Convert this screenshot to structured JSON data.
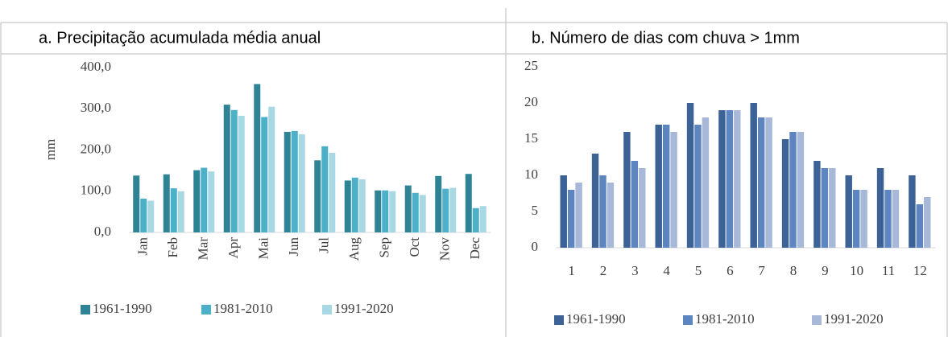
{
  "chart_data": [
    {
      "type": "bar",
      "title": "a.  Precipitação acumulada média anual",
      "y_label": "mm",
      "categories": [
        "Jan",
        "Feb",
        "Mar",
        "Apr",
        "Mai",
        "Jun",
        "Jul",
        "Aug",
        "Sep",
        "Oct",
        "Nov",
        "Dec"
      ],
      "series": [
        {
          "name": "1961-1990",
          "color": "#2e8494",
          "values": [
            138,
            141,
            151,
            310,
            360,
            244,
            175,
            126,
            102,
            114,
            137,
            142
          ]
        },
        {
          "name": "1981-2010",
          "color": "#4bb0c8",
          "values": [
            82,
            107,
            157,
            297,
            280,
            246,
            209,
            133,
            102,
            96,
            106,
            59
          ]
        },
        {
          "name": "1991-2020",
          "color": "#a8d8e4",
          "values": [
            77,
            100,
            148,
            283,
            305,
            238,
            193,
            129,
            100,
            91,
            108,
            64
          ]
        }
      ],
      "ylim": [
        0,
        400
      ],
      "yticks": [
        {
          "value": 0,
          "label": "0,0"
        },
        {
          "value": 100,
          "label": "100,0"
        },
        {
          "value": 200,
          "label": "200,0"
        },
        {
          "value": 300,
          "label": "300,0"
        },
        {
          "value": 400,
          "label": "400,0"
        }
      ],
      "grid": false,
      "legend": "bottom"
    },
    {
      "type": "bar",
      "title": "b.  Número de dias com chuva > 1mm",
      "categories": [
        "1",
        "2",
        "3",
        "4",
        "5",
        "6",
        "7",
        "8",
        "9",
        "10",
        "11",
        "12"
      ],
      "series": [
        {
          "name": "1961-1990",
          "color": "#3c6296",
          "values": [
            10,
            13,
            16,
            17,
            20,
            19,
            20,
            15,
            12,
            10,
            11,
            10
          ]
        },
        {
          "name": "1981-2010",
          "color": "#5d86c0",
          "values": [
            8,
            10,
            12,
            17,
            17,
            19,
            18,
            16,
            11,
            8,
            8,
            6
          ]
        },
        {
          "name": "1991-2020",
          "color": "#a8b8d9",
          "values": [
            9,
            9,
            11,
            16,
            18,
            19,
            18,
            16,
            11,
            8,
            8,
            7
          ]
        }
      ],
      "ylim": [
        0,
        25
      ],
      "yticks": [
        0,
        5,
        10,
        15,
        20,
        25
      ],
      "grid": false,
      "legend": "bottom"
    }
  ]
}
